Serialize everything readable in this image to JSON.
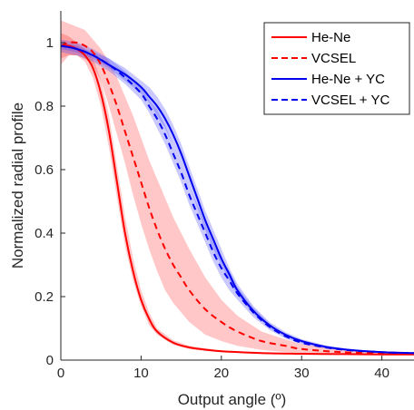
{
  "chart_data": {
    "type": "line",
    "xlabel": "Output angle (º)",
    "ylabel": "Normalized radial profile",
    "xlim": [
      0,
      44
    ],
    "ylim": [
      0,
      1.1
    ],
    "xticks": [
      "0",
      "10",
      "20",
      "30",
      "40"
    ],
    "yticks": [
      "0",
      "0.2",
      "0.4",
      "0.6",
      "0.8",
      "1"
    ],
    "legend_position": "top-right",
    "series": [
      {
        "name": "He-Ne",
        "color": "#ff0000",
        "dash": "solid",
        "x": [
          0,
          1,
          2,
          3,
          4,
          5,
          6,
          7,
          8,
          9,
          10,
          11,
          12,
          14,
          16,
          18,
          20,
          25,
          30,
          35,
          40,
          44
        ],
        "y": [
          0.99,
          0.99,
          0.98,
          0.96,
          0.92,
          0.84,
          0.72,
          0.56,
          0.4,
          0.28,
          0.19,
          0.13,
          0.09,
          0.055,
          0.04,
          0.033,
          0.028,
          0.022,
          0.02,
          0.019,
          0.018,
          0.018
        ],
        "band_lower": [
          0.95,
          0.96,
          0.96,
          0.94,
          0.89,
          0.8,
          0.67,
          0.51,
          0.36,
          0.25,
          0.17,
          0.11,
          0.08,
          0.048,
          0.035,
          0.029,
          0.025,
          0.02,
          0.018,
          0.017,
          0.016,
          0.016
        ],
        "band_upper": [
          1.03,
          1.02,
          1.0,
          0.98,
          0.95,
          0.88,
          0.77,
          0.61,
          0.45,
          0.32,
          0.22,
          0.15,
          0.1,
          0.062,
          0.045,
          0.037,
          0.031,
          0.024,
          0.022,
          0.021,
          0.02,
          0.02
        ]
      },
      {
        "name": "VCSEL",
        "color": "#ff0000",
        "dash": "dashed",
        "x": [
          0,
          1,
          2,
          3,
          4,
          5,
          6,
          7,
          8,
          9,
          10,
          11,
          12,
          13,
          14,
          15,
          16,
          18,
          20,
          22,
          25,
          28,
          30,
          35,
          40,
          44
        ],
        "y": [
          0.99,
          1.0,
          1.0,
          0.99,
          0.97,
          0.93,
          0.87,
          0.8,
          0.72,
          0.64,
          0.56,
          0.48,
          0.41,
          0.35,
          0.3,
          0.26,
          0.22,
          0.16,
          0.12,
          0.09,
          0.06,
          0.045,
          0.035,
          0.025,
          0.022,
          0.02
        ],
        "band_lower": [
          0.93,
          0.96,
          0.96,
          0.95,
          0.93,
          0.88,
          0.8,
          0.71,
          0.62,
          0.52,
          0.43,
          0.35,
          0.28,
          0.22,
          0.18,
          0.15,
          0.12,
          0.08,
          0.06,
          0.045,
          0.032,
          0.025,
          0.022,
          0.018,
          0.016,
          0.015
        ],
        "band_upper": [
          1.07,
          1.06,
          1.05,
          1.04,
          1.01,
          0.98,
          0.94,
          0.89,
          0.83,
          0.77,
          0.7,
          0.63,
          0.57,
          0.51,
          0.45,
          0.4,
          0.35,
          0.26,
          0.19,
          0.14,
          0.09,
          0.065,
          0.05,
          0.035,
          0.028,
          0.025
        ]
      },
      {
        "name": "He-Ne + YC",
        "color": "#0000ee",
        "dash": "solid",
        "x": [
          0,
          2,
          4,
          6,
          8,
          10,
          11,
          12,
          13,
          14,
          15,
          16,
          17,
          18,
          19,
          20,
          21,
          22,
          24,
          26,
          28,
          30,
          33,
          36,
          40,
          44
        ],
        "y": [
          0.99,
          0.98,
          0.96,
          0.93,
          0.9,
          0.86,
          0.83,
          0.8,
          0.76,
          0.71,
          0.65,
          0.58,
          0.51,
          0.44,
          0.38,
          0.32,
          0.27,
          0.22,
          0.155,
          0.11,
          0.08,
          0.06,
          0.042,
          0.032,
          0.025,
          0.022
        ],
        "band_lower": [
          0.98,
          0.97,
          0.95,
          0.92,
          0.88,
          0.84,
          0.81,
          0.77,
          0.73,
          0.68,
          0.62,
          0.55,
          0.48,
          0.41,
          0.35,
          0.3,
          0.25,
          0.205,
          0.145,
          0.1,
          0.073,
          0.055,
          0.038,
          0.029,
          0.023,
          0.02
        ],
        "band_upper": [
          1.0,
          0.99,
          0.97,
          0.95,
          0.92,
          0.88,
          0.86,
          0.83,
          0.79,
          0.74,
          0.68,
          0.61,
          0.54,
          0.47,
          0.41,
          0.35,
          0.29,
          0.24,
          0.17,
          0.12,
          0.088,
          0.066,
          0.046,
          0.035,
          0.027,
          0.024
        ]
      },
      {
        "name": "VCSEL + YC",
        "color": "#0000ee",
        "dash": "dashed",
        "x": [
          0,
          2,
          4,
          6,
          8,
          10,
          11,
          12,
          13,
          14,
          15,
          16,
          17,
          18,
          19,
          20,
          21,
          22,
          24,
          26,
          28,
          30,
          33,
          36,
          40,
          44
        ],
        "y": [
          0.99,
          0.98,
          0.96,
          0.93,
          0.89,
          0.84,
          0.8,
          0.76,
          0.71,
          0.65,
          0.59,
          0.52,
          0.46,
          0.4,
          0.34,
          0.29,
          0.25,
          0.21,
          0.15,
          0.105,
          0.075,
          0.055,
          0.04,
          0.031,
          0.025,
          0.022
        ],
        "band_lower": [
          0.97,
          0.96,
          0.94,
          0.91,
          0.87,
          0.82,
          0.78,
          0.73,
          0.68,
          0.62,
          0.56,
          0.49,
          0.43,
          0.37,
          0.31,
          0.26,
          0.22,
          0.19,
          0.135,
          0.095,
          0.068,
          0.05,
          0.036,
          0.028,
          0.023,
          0.02
        ],
        "band_upper": [
          1.01,
          1.0,
          0.98,
          0.95,
          0.91,
          0.86,
          0.82,
          0.79,
          0.74,
          0.68,
          0.62,
          0.55,
          0.49,
          0.43,
          0.37,
          0.32,
          0.28,
          0.23,
          0.165,
          0.115,
          0.082,
          0.06,
          0.044,
          0.034,
          0.027,
          0.024
        ]
      }
    ]
  }
}
